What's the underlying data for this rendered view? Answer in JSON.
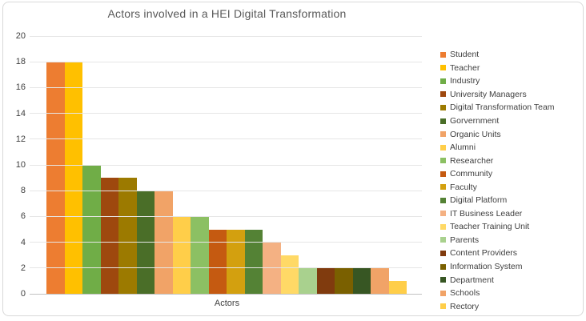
{
  "title": "Actors involved in a HEI Digital Transformation",
  "colors": {
    "grid": "#E6E6E6",
    "axis_line": "#C2C2C2",
    "text": "#404040",
    "title_text": "#595959",
    "frame_border": "#D9D9D9"
  },
  "chart_data": {
    "type": "bar",
    "title": "Actors involved in a HEI Digital Transformation",
    "xlabel": "Actors",
    "ylabel": "",
    "ylim": [
      0,
      20
    ],
    "ytick_step": 2,
    "yticks": [
      0,
      2,
      4,
      6,
      8,
      10,
      12,
      14,
      16,
      18,
      20
    ],
    "grid": true,
    "legend_position": "right",
    "categories": [
      "Actors"
    ],
    "series": [
      {
        "name": "Student",
        "values": [
          18
        ],
        "color": "#ED7D31"
      },
      {
        "name": "Teacher",
        "values": [
          18
        ],
        "color": "#FFC000"
      },
      {
        "name": "Industry",
        "values": [
          10
        ],
        "color": "#70AD47"
      },
      {
        "name": "University Managers",
        "values": [
          9
        ],
        "color": "#9E480E"
      },
      {
        "name": "Digital Transformation Team",
        "values": [
          9
        ],
        "color": "#9C7A00"
      },
      {
        "name": "Gorvernment",
        "values": [
          8
        ],
        "color": "#4A6E28"
      },
      {
        "name": "Organic Units",
        "values": [
          8
        ],
        "color": "#F1A367"
      },
      {
        "name": "Alumni",
        "values": [
          6
        ],
        "color": "#FFCE49"
      },
      {
        "name": "Researcher",
        "values": [
          6
        ],
        "color": "#8CC063"
      },
      {
        "name": "Community",
        "values": [
          5
        ],
        "color": "#C55A11"
      },
      {
        "name": "Faculty",
        "values": [
          5
        ],
        "color": "#D3A00F"
      },
      {
        "name": "Digital Platform",
        "values": [
          5
        ],
        "color": "#548235"
      },
      {
        "name": "IT Business Leader",
        "values": [
          4
        ],
        "color": "#F4B183"
      },
      {
        "name": "Teacher Training Unit",
        "values": [
          3
        ],
        "color": "#FFD966"
      },
      {
        "name": "Parents",
        "values": [
          2
        ],
        "color": "#A9D18E"
      },
      {
        "name": "Content Providers",
        "values": [
          2
        ],
        "color": "#803B0E"
      },
      {
        "name": "Information System",
        "values": [
          2
        ],
        "color": "#7A6000"
      },
      {
        "name": "Department",
        "values": [
          2
        ],
        "color": "#375623"
      },
      {
        "name": "Schools",
        "values": [
          2
        ],
        "color": "#F1A367"
      },
      {
        "name": "Rectory",
        "values": [
          1
        ],
        "color": "#FFCE49"
      }
    ]
  }
}
